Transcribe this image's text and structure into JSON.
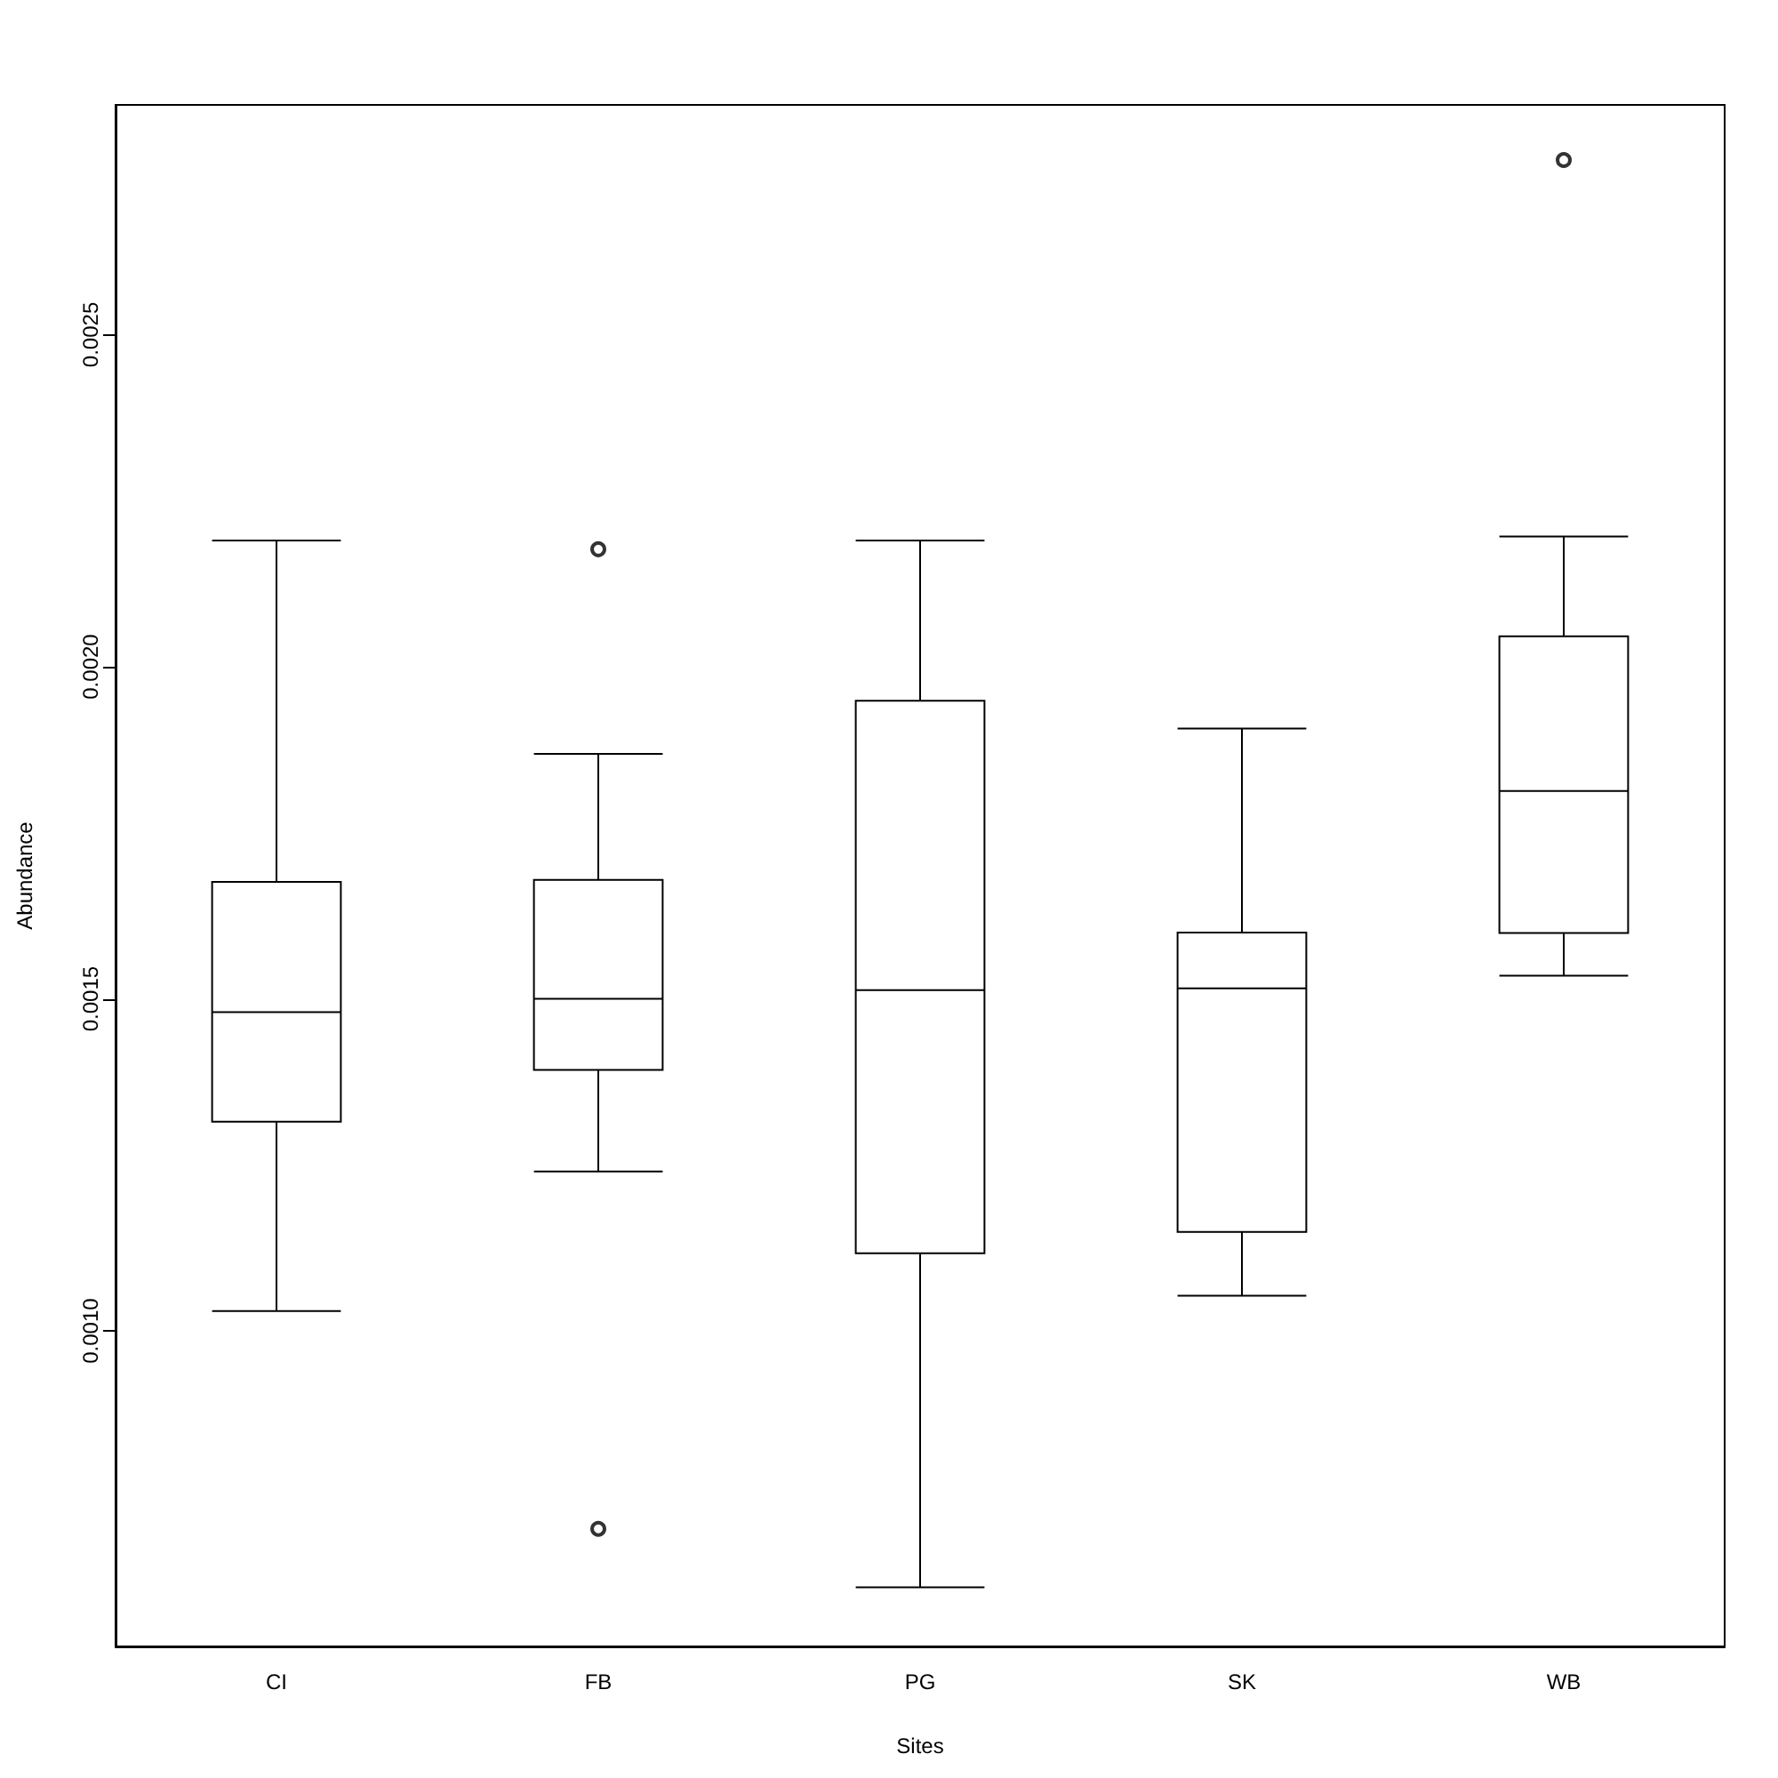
{
  "chart_data": {
    "type": "box",
    "xlabel": "Sites",
    "ylabel": "Abundance",
    "categories": [
      "CI",
      "FB",
      "PG",
      "SK",
      "WB"
    ],
    "color": "#000000",
    "grid": false,
    "ylim": [
      0.000525,
      0.002846
    ],
    "yticks": [
      {
        "value": 0.001,
        "label": "0.0010"
      },
      {
        "value": 0.0015,
        "label": "0.0015"
      },
      {
        "value": 0.002,
        "label": "0.0020"
      },
      {
        "value": 0.0025,
        "label": "0.0025"
      }
    ],
    "boxes": [
      {
        "low": 0.00103,
        "q1": 0.001315,
        "median": 0.00148,
        "q3": 0.001676,
        "high": 0.00219
      },
      {
        "low": 0.00124,
        "q1": 0.001393,
        "median": 0.0015,
        "q3": 0.001679,
        "high": 0.001869,
        "outliers": [
          0.002177,
          0.000702
        ]
      },
      {
        "low": 0.000614,
        "q1": 0.001117,
        "median": 0.001513,
        "q3": 0.001949,
        "high": 0.00219
      },
      {
        "low": 0.001053,
        "q1": 0.001149,
        "median": 0.001516,
        "q3": 0.0016,
        "high": 0.001907
      },
      {
        "low": 0.001535,
        "q1": 0.001599,
        "median": 0.001813,
        "q3": 0.002046,
        "high": 0.002196,
        "outliers": [
          0.002763
        ]
      }
    ]
  }
}
